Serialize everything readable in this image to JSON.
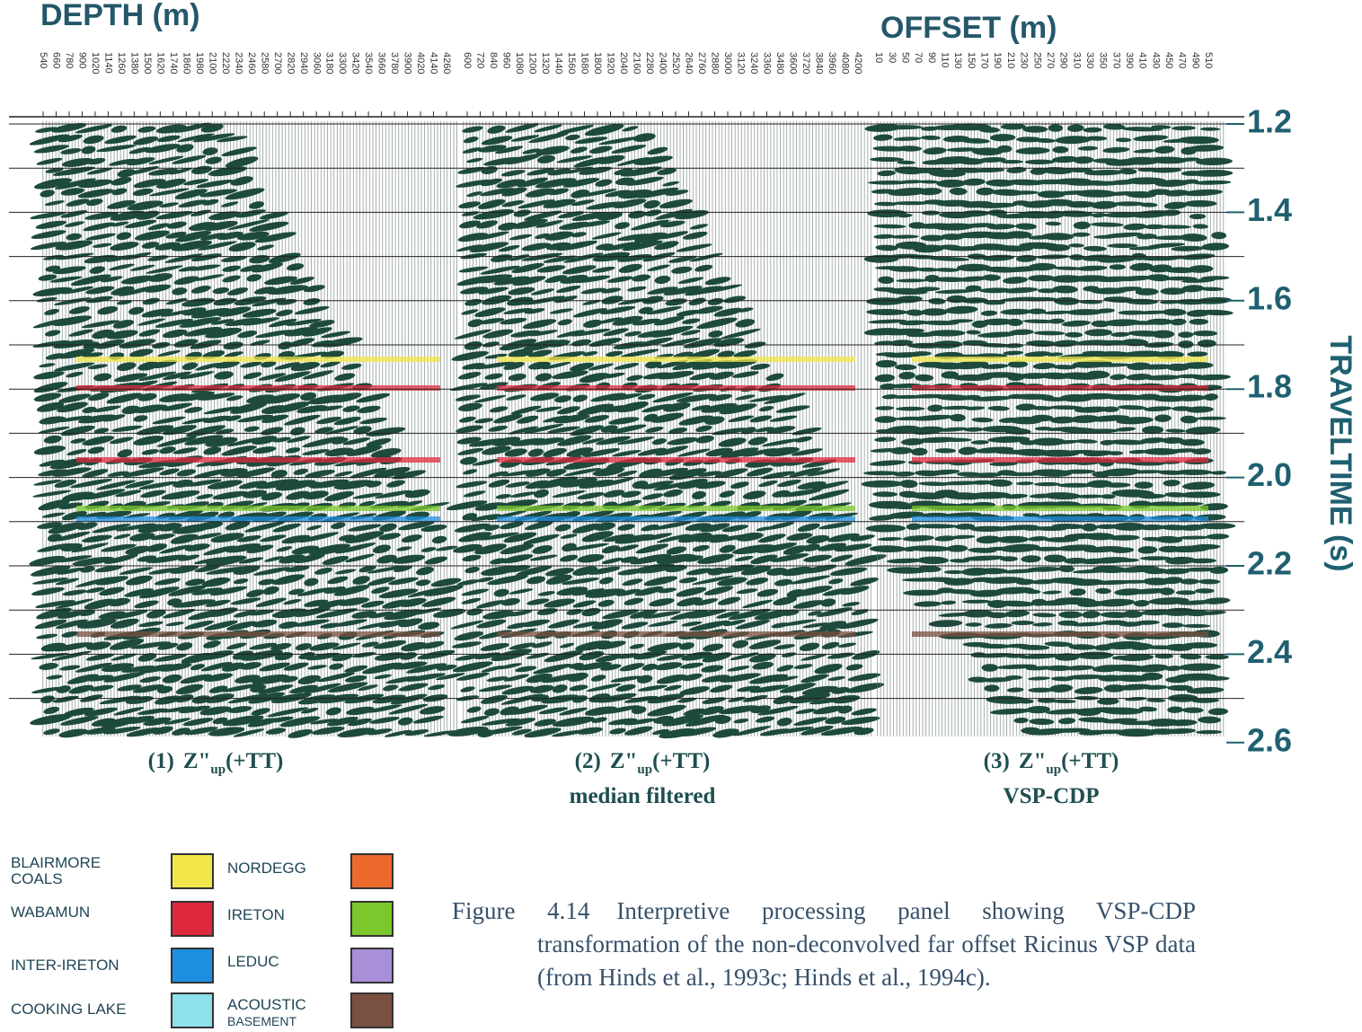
{
  "header": {
    "depth_label": "DEPTH (m)",
    "offset_label": "OFFSET (m)"
  },
  "panels": [
    {
      "trace_labels": [
        "540",
        "660",
        "780",
        "900",
        "1020",
        "1140",
        "1260",
        "1380",
        "1500",
        "1620",
        "1740",
        "1860",
        "1980",
        "2100",
        "2220",
        "2340",
        "2460",
        "2580",
        "2700",
        "2820",
        "2940",
        "3060",
        "3180",
        "3300",
        "3420",
        "3540",
        "3660",
        "3780",
        "3900",
        "4020",
        "4140",
        "4260"
      ],
      "caption": {
        "number": "(1)",
        "symbol": "Z\"",
        "subscript": "up",
        "suffix": "(+TT)"
      }
    },
    {
      "trace_labels": [
        "600",
        "720",
        "840",
        "960",
        "1080",
        "1200",
        "1320",
        "1440",
        "1560",
        "1680",
        "1800",
        "1920",
        "2040",
        "2160",
        "2280",
        "2400",
        "2520",
        "2640",
        "2760",
        "2880",
        "3000",
        "3120",
        "3240",
        "3360",
        "3480",
        "3600",
        "3720",
        "3840",
        "3960",
        "4080",
        "4200"
      ],
      "caption": {
        "number": "(2)",
        "symbol": "Z\"",
        "subscript": "up",
        "suffix": "(+TT)",
        "subtitle": "median filtered"
      }
    },
    {
      "trace_labels": [
        "10",
        "30",
        "50",
        "70",
        "90",
        "110",
        "130",
        "150",
        "170",
        "190",
        "210",
        "230",
        "250",
        "270",
        "290",
        "310",
        "330",
        "350",
        "370",
        "390",
        "410",
        "430",
        "450",
        "470",
        "490",
        "510"
      ],
      "caption": {
        "number": "(3)",
        "symbol": "Z\"",
        "subscript": "up",
        "suffix": "(+TT)",
        "subtitle": "VSP-CDP"
      }
    }
  ],
  "axis": {
    "title": "TRAVELTIME (s)",
    "ticks": [
      "1.2",
      "1.4",
      "1.6",
      "1.8",
      "2.0",
      "2.2",
      "2.4",
      "2.6"
    ]
  },
  "legend": [
    {
      "lines": [
        "BLAIRMORE",
        "COALS"
      ],
      "color": "#f2e64a"
    },
    {
      "lines": [
        "WABAMUN"
      ],
      "color": "#e0283c"
    },
    {
      "lines": [
        "INTER-IRETON"
      ],
      "color": "#1e8fe0"
    },
    {
      "lines": [
        "COOKING LAKE"
      ],
      "color": "#8ee0ea"
    },
    {
      "lines": [
        "NORDEGG"
      ],
      "color": "#ec6a2c"
    },
    {
      "lines": [
        "IRETON"
      ],
      "color": "#7cc82c"
    },
    {
      "lines": [
        "LEDUC"
      ],
      "color": "#a98ed8"
    },
    {
      "lines": [
        "ACOUSTIC",
        "BASEMENT"
      ],
      "color": "#7a5040"
    }
  ],
  "figure_caption": {
    "label": "Figure 4.14",
    "text": "Interpretive processing panel showing VSP-CDP transformation of the non-deconvolved far offset Ricinus VSP data (from Hinds et al., 1993c; Hinds et al., 1994c)."
  }
}
